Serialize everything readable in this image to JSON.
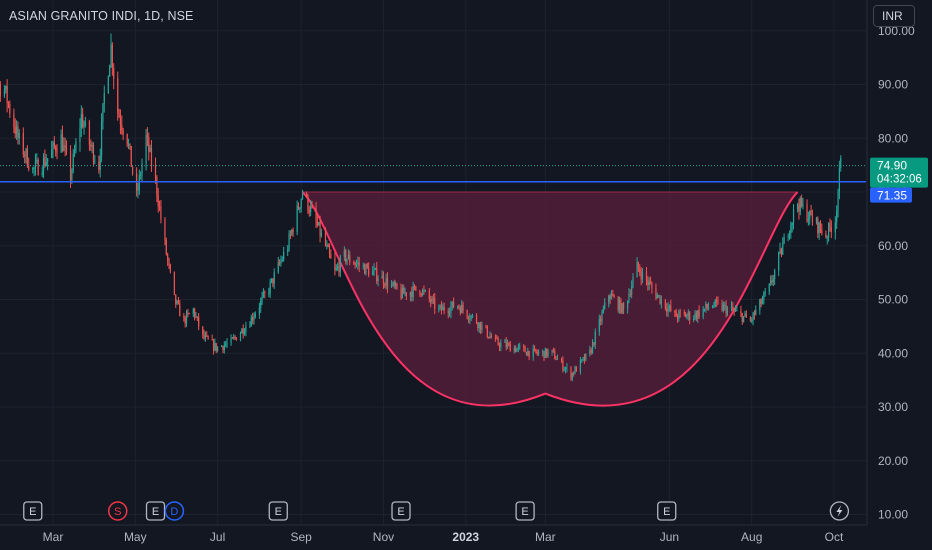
{
  "header": {
    "title": "ASIAN GRANITO INDI, 1D, NSE"
  },
  "currency": {
    "label": "INR"
  },
  "colors": {
    "background": "#131722",
    "grid": "#1e222d",
    "up": "#26a69a",
    "down": "#ef5350",
    "pattern": "#ff3366",
    "pattern_fill": "#5c1e3c",
    "resistance": "#2962ff",
    "price_tag": "#089981",
    "level_tag": "#2962ff"
  },
  "price_tag": {
    "price": "74.90",
    "countdown": "04:32:06",
    "value": 74.9
  },
  "level_tag": {
    "price": "71.35",
    "value": 71.35
  },
  "events": [
    {
      "type": "E",
      "date": "2022-02-14"
    },
    {
      "type": "S",
      "date": "2022-04-18"
    },
    {
      "type": "E",
      "date": "2022-05-16"
    },
    {
      "type": "D",
      "date": "2022-05-30"
    },
    {
      "type": "E",
      "date": "2022-08-15"
    },
    {
      "type": "E",
      "date": "2022-11-14"
    },
    {
      "type": "E",
      "date": "2023-02-14"
    },
    {
      "type": "E",
      "date": "2023-05-30"
    },
    {
      "type": "flash",
      "date": "2023-10-05"
    }
  ],
  "chart_data": {
    "type": "candlestick",
    "title": "ASIAN GRANITO INDI, 1D, NSE",
    "currency": "INR",
    "y_ticks": [
      "10.00",
      "20.00",
      "30.00",
      "40.00",
      "50.00",
      "60.00",
      "70.00",
      "80.00",
      "90.00",
      "100.00"
    ],
    "x_ticks": [
      {
        "label": "Mar",
        "date": "2022-03-01"
      },
      {
        "label": "May",
        "date": "2022-05-01"
      },
      {
        "label": "Jul",
        "date": "2022-07-01"
      },
      {
        "label": "Sep",
        "date": "2022-09-01"
      },
      {
        "label": "Nov",
        "date": "2022-11-01"
      },
      {
        "label": "2023",
        "date": "2023-01-01",
        "bold": true
      },
      {
        "label": "Mar",
        "date": "2023-03-01"
      },
      {
        "label": "Jun",
        "date": "2023-06-01"
      },
      {
        "label": "Aug",
        "date": "2023-08-01"
      },
      {
        "label": "Oct",
        "date": "2023-10-01"
      }
    ],
    "grid": true,
    "last_price": 74.9,
    "resistance_level": 71.35,
    "cup_pattern": {
      "start": {
        "date": "2022-09-02",
        "price": 70
      },
      "bottom": {
        "date": "2023-03-01",
        "price": 32.5
      },
      "end": {
        "date": "2023-09-04",
        "price": 70
      }
    },
    "price_path": [
      [
        "2022-01-03",
        88
      ],
      [
        "2022-01-10",
        92
      ],
      [
        "2022-01-24",
        89
      ],
      [
        "2022-02-03",
        80
      ],
      [
        "2022-02-14",
        74
      ],
      [
        "2022-02-24",
        76
      ],
      [
        "2022-03-07",
        80
      ],
      [
        "2022-03-14",
        73
      ],
      [
        "2022-03-22",
        84
      ],
      [
        "2022-03-28",
        79
      ],
      [
        "2022-04-04",
        75
      ],
      [
        "2022-04-08",
        88
      ],
      [
        "2022-04-13",
        97
      ],
      [
        "2022-04-18",
        85
      ],
      [
        "2022-04-25",
        80
      ],
      [
        "2022-05-02",
        69
      ],
      [
        "2022-05-09",
        80
      ],
      [
        "2022-05-16",
        72
      ],
      [
        "2022-05-23",
        60
      ],
      [
        "2022-05-30",
        50
      ],
      [
        "2022-06-06",
        46
      ],
      [
        "2022-06-13",
        48
      ],
      [
        "2022-06-20",
        43
      ],
      [
        "2022-06-30",
        41
      ],
      [
        "2022-07-11",
        42
      ],
      [
        "2022-07-25",
        46
      ],
      [
        "2022-08-08",
        52
      ],
      [
        "2022-08-22",
        60
      ],
      [
        "2022-09-02",
        70
      ],
      [
        "2022-09-09",
        66
      ],
      [
        "2022-09-19",
        60
      ],
      [
        "2022-09-26",
        55
      ],
      [
        "2022-10-03",
        58
      ],
      [
        "2022-10-17",
        56
      ],
      [
        "2022-10-31",
        54
      ],
      [
        "2022-11-14",
        51
      ],
      [
        "2022-11-28",
        52
      ],
      [
        "2022-12-12",
        48
      ],
      [
        "2022-12-26",
        49
      ],
      [
        "2023-01-09",
        46
      ],
      [
        "2023-01-23",
        42
      ],
      [
        "2023-02-06",
        41
      ],
      [
        "2023-02-20",
        40
      ],
      [
        "2023-03-06",
        40
      ],
      [
        "2023-03-20",
        36
      ],
      [
        "2023-04-03",
        40
      ],
      [
        "2023-04-17",
        51
      ],
      [
        "2023-04-28",
        48
      ],
      [
        "2023-05-08",
        56
      ],
      [
        "2023-05-22",
        51
      ],
      [
        "2023-06-05",
        47
      ],
      [
        "2023-06-19",
        47
      ],
      [
        "2023-07-03",
        49
      ],
      [
        "2023-07-17",
        48
      ],
      [
        "2023-07-31",
        46
      ],
      [
        "2023-08-14",
        52
      ],
      [
        "2023-08-28",
        63
      ],
      [
        "2023-09-04",
        68
      ],
      [
        "2023-09-11",
        66
      ],
      [
        "2023-09-25",
        62
      ],
      [
        "2023-10-02",
        65
      ],
      [
        "2023-10-05",
        73
      ],
      [
        "2023-10-06",
        75
      ]
    ]
  }
}
